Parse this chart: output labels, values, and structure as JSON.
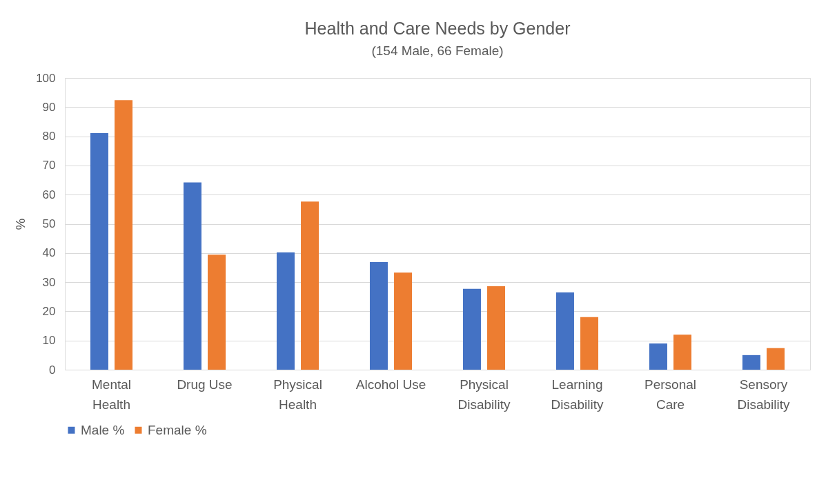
{
  "chart_data": {
    "type": "bar",
    "title": "Health and Care Needs by Gender",
    "subtitle": "(154 Male, 66 Female)",
    "ylabel": "%",
    "categories": [
      "Mental Health",
      "Drug Use",
      "Physical Health",
      "Alcohol Use",
      "Physical Disability",
      "Learning Disability",
      "Personal Care",
      "Sensory Disability"
    ],
    "series": [
      {
        "name": "Male %",
        "color": "#4472c4",
        "values": [
          81.1,
          64.2,
          40.2,
          36.9,
          27.7,
          26.5,
          9.0,
          5.0
        ]
      },
      {
        "name": "Female %",
        "color": "#ed7d31",
        "values": [
          92.4,
          39.4,
          57.6,
          33.3,
          28.6,
          18.0,
          12.0,
          7.4
        ]
      }
    ],
    "ylim": [
      0,
      100
    ],
    "yticks": [
      0,
      10,
      20,
      30,
      40,
      50,
      60,
      70,
      80,
      90,
      100
    ],
    "grid": "y",
    "legend": "bottom"
  }
}
